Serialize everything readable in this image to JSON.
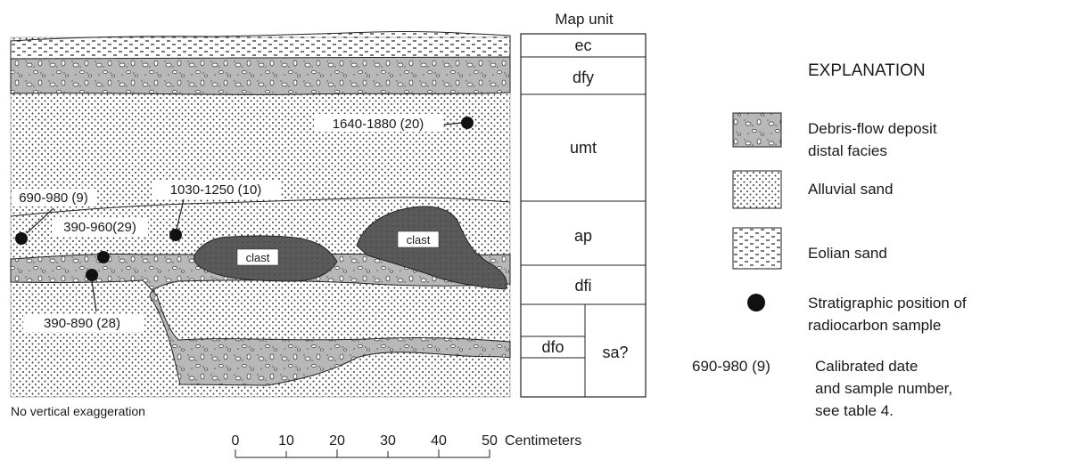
{
  "section": {
    "map_unit_header": "Map unit",
    "clast_label": "clast",
    "no_vertical_exaggeration": "No vertical exaggeration",
    "units": [
      "ec",
      "dfy",
      "umt",
      "ap",
      "dfi",
      "dfo",
      "sa?"
    ],
    "samples": [
      {
        "label": "1640-1880 (20)"
      },
      {
        "label": "690-980 (9)"
      },
      {
        "label": "1030-1250 (10)"
      },
      {
        "label": "390-960(29)"
      },
      {
        "label": "390-890 (28)"
      }
    ],
    "scale": {
      "ticks": [
        "0",
        "10",
        "20",
        "30",
        "40",
        "50"
      ],
      "unit": "Centimeters"
    }
  },
  "explanation": {
    "title": "EXPLANATION",
    "debris_line1": "Debris-flow deposit",
    "debris_line2": "distal facies",
    "alluvial": "Alluvial sand",
    "eolian": "Eolian sand",
    "sample_line1": "Stratigraphic position of",
    "sample_line2": "radiocarbon sample",
    "date_example": "690-980 (9)",
    "date_line1": "Calibrated date",
    "date_line2": "and sample number,",
    "date_line3": "see table 4."
  },
  "colors": {
    "debris_fill": "#b8b8b8",
    "clast_fill": "#5a5a5a",
    "outline": "#222222",
    "background": "#ffffff"
  }
}
